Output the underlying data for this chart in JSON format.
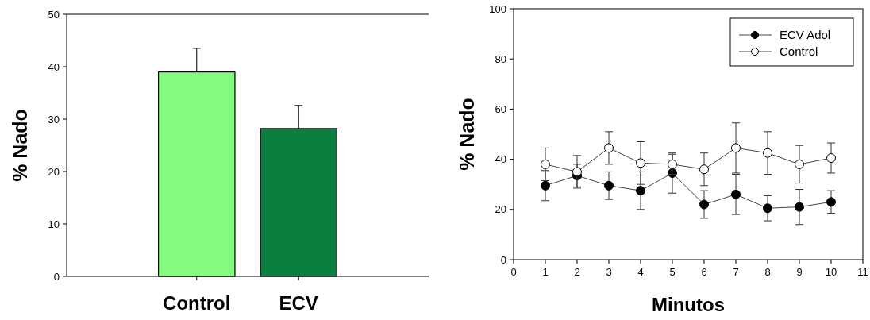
{
  "chart_data": [
    {
      "type": "bar",
      "ylabel": "% Nado",
      "categories": [
        "Control",
        "ECV"
      ],
      "colors": [
        "#84fa7f",
        "#0a7f40"
      ],
      "values": [
        39,
        28.2
      ],
      "errors": [
        [
          39,
          43.5
        ],
        [
          28.2,
          32.6
        ]
      ],
      "ylim": [
        0,
        50
      ],
      "yticks": [
        0,
        10,
        20,
        30,
        40,
        50
      ]
    },
    {
      "type": "line",
      "ylabel": "% Nado",
      "xlabel": "Minutos",
      "x": [
        1,
        2,
        3,
        4,
        5,
        6,
        7,
        8,
        9,
        10
      ],
      "xlim": [
        0,
        11
      ],
      "xticks": [
        0,
        1,
        2,
        3,
        4,
        5,
        6,
        7,
        8,
        9,
        10,
        11
      ],
      "ylim": [
        0,
        100
      ],
      "yticks": [
        0,
        20,
        40,
        60,
        80,
        100
      ],
      "grid": false,
      "legend": "top right",
      "marker": "circle",
      "line_style": "solid",
      "series": [
        {
          "name": "ECV Adol",
          "color": "#000000",
          "values": [
            29.5,
            33.5,
            29.5,
            27.5,
            34.5,
            22,
            26,
            20.5,
            21,
            23
          ],
          "errors": [
            6,
            4.5,
            5.5,
            7.5,
            8,
            5.5,
            8,
            5,
            7,
            4.5
          ]
        },
        {
          "name": "Control",
          "color": "#ffffff",
          "values": [
            38,
            35,
            44.5,
            38.5,
            38,
            36,
            44.5,
            42.5,
            38,
            40.5
          ],
          "errors": [
            6.5,
            6.5,
            6.5,
            8.5,
            4,
            6.5,
            10,
            8.5,
            7.5,
            6
          ]
        }
      ]
    }
  ]
}
